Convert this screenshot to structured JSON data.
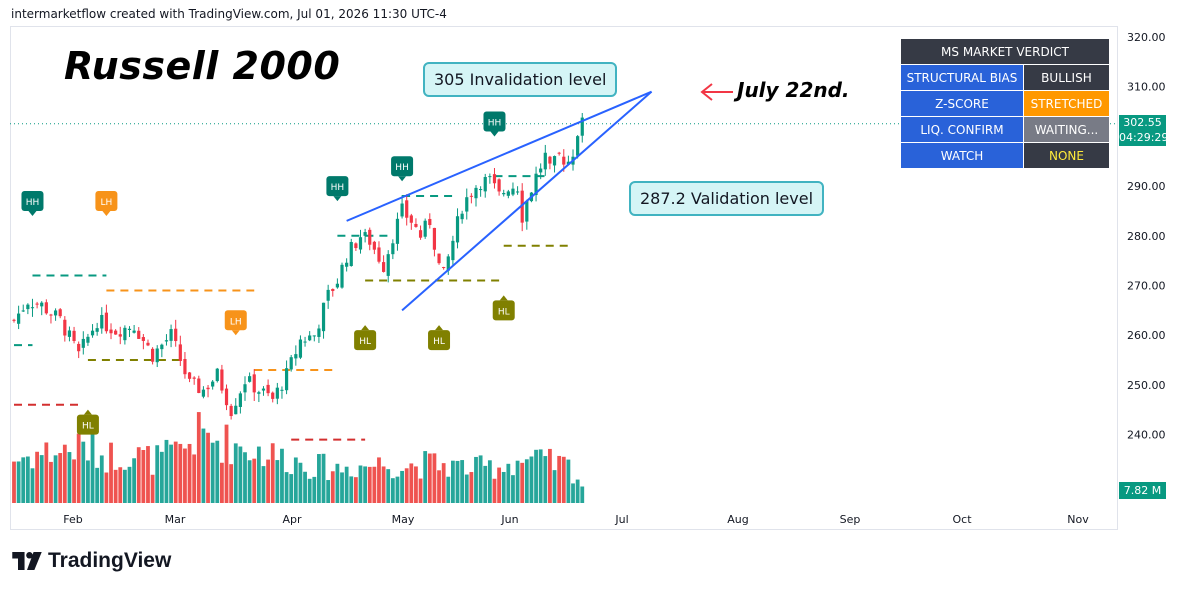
{
  "header": {
    "text": "intermarketflow created with TradingView.com, Jul 01, 2026 11:30 UTC-4"
  },
  "brand": {
    "logo_icon": "tradingview-logo-icon",
    "name": "TradingView"
  },
  "colors": {
    "up": "#089981",
    "down": "#f23645",
    "vol_up": "#26a69a",
    "vol_down": "#ef5350",
    "wedge": "#2962ff",
    "marker_hh": "#00796b",
    "marker_lh": "#f7931a",
    "marker_hl": "#808000",
    "callout_bg": "#d5f5f6",
    "callout_border": "#41b3c1"
  },
  "chart_data": {
    "type": "candlestick",
    "title": "Russell 2000",
    "y_ticks": [
      320,
      310,
      290,
      280,
      270,
      260,
      250,
      240
    ],
    "x_ticks": [
      "Feb",
      "Mar",
      "Apr",
      "May",
      "Jun",
      "Jul",
      "Aug",
      "Sep",
      "Oct",
      "Nov"
    ],
    "ylim": [
      229,
      321
    ],
    "last_price": "302.55",
    "countdown": "04:29:29",
    "volume_label": "7.82 M",
    "trading_days": 123,
    "close_waypoints": [
      [
        0,
        263
      ],
      [
        3,
        267
      ],
      [
        6,
        266
      ],
      [
        10,
        263
      ],
      [
        14,
        256
      ],
      [
        18,
        263
      ],
      [
        22,
        261
      ],
      [
        26,
        262
      ],
      [
        30,
        256
      ],
      [
        34,
        260
      ],
      [
        38,
        250
      ],
      [
        41,
        249
      ],
      [
        44,
        252
      ],
      [
        47,
        245
      ],
      [
        50,
        251
      ],
      [
        53,
        249
      ],
      [
        56,
        247
      ],
      [
        59,
        252
      ],
      [
        62,
        259
      ],
      [
        65,
        260
      ],
      [
        68,
        268
      ],
      [
        70,
        271
      ],
      [
        72,
        276
      ],
      [
        75,
        280
      ],
      [
        77,
        279
      ],
      [
        80,
        274
      ],
      [
        82,
        280
      ],
      [
        84,
        285
      ],
      [
        86,
        283
      ],
      [
        88,
        280
      ],
      [
        90,
        283
      ],
      [
        92,
        274
      ],
      [
        93,
        272
      ],
      [
        95,
        279
      ],
      [
        97,
        286
      ],
      [
        99,
        289
      ],
      [
        101,
        291
      ],
      [
        103,
        291
      ],
      [
        105,
        288
      ],
      [
        107,
        290
      ],
      [
        109,
        290
      ],
      [
        110,
        284
      ],
      [
        111,
        287
      ],
      [
        113,
        292
      ],
      [
        115,
        296
      ],
      [
        116,
        293
      ],
      [
        118,
        296
      ],
      [
        120,
        295
      ],
      [
        121,
        297
      ],
      [
        122,
        301
      ],
      [
        123,
        302.5
      ]
    ],
    "volume_profile": [
      [
        0,
        0.35
      ],
      [
        5,
        0.4
      ],
      [
        10,
        0.42
      ],
      [
        15,
        0.45
      ],
      [
        20,
        0.38
      ],
      [
        25,
        0.4
      ],
      [
        30,
        0.35
      ],
      [
        35,
        0.4
      ],
      [
        40,
        0.55
      ],
      [
        45,
        0.5
      ],
      [
        50,
        0.45
      ],
      [
        55,
        0.4
      ],
      [
        60,
        0.35
      ],
      [
        65,
        0.3
      ],
      [
        70,
        0.28
      ],
      [
        75,
        0.3
      ],
      [
        80,
        0.32
      ],
      [
        85,
        0.3
      ],
      [
        90,
        0.32
      ],
      [
        95,
        0.3
      ],
      [
        100,
        0.28
      ],
      [
        105,
        0.3
      ],
      [
        110,
        0.35
      ],
      [
        115,
        0.33
      ],
      [
        120,
        0.3
      ],
      [
        123,
        0.15
      ]
    ],
    "swing_markers": [
      {
        "label": "HH",
        "x": 2,
        "y": 287
      },
      {
        "label": "LH",
        "x": 10,
        "y": 287
      },
      {
        "label": "HL",
        "x": 8,
        "y": 242
      },
      {
        "label": "HH",
        "x": 35,
        "y": 290
      },
      {
        "label": "LH",
        "x": 24,
        "y": 263
      },
      {
        "label": "HL",
        "x": 38,
        "y": 259
      },
      {
        "label": "HH",
        "x": 42,
        "y": 294
      },
      {
        "label": "HL",
        "x": 46,
        "y": 259
      },
      {
        "label": "HH",
        "x": 52,
        "y": 303
      },
      {
        "label": "HL",
        "x": 53,
        "y": 265
      }
    ],
    "levels": [
      {
        "color": "#089981",
        "x1": 2,
        "x2": 10,
        "y": 272
      },
      {
        "color": "#089981",
        "x1": 0,
        "x2": 2,
        "y": 258
      },
      {
        "color": "#f7931a",
        "x1": 10,
        "x2": 26,
        "y": 269
      },
      {
        "color": "#808000",
        "x1": 8,
        "x2": 18,
        "y": 255
      },
      {
        "color": "#d32f2f",
        "x1": 0,
        "x2": 7,
        "y": 246
      },
      {
        "color": "#f7931a",
        "x1": 26,
        "x2": 35,
        "y": 253
      },
      {
        "color": "#d32f2f",
        "x1": 30,
        "x2": 38,
        "y": 239
      },
      {
        "color": "#089981",
        "x1": 35,
        "x2": 41,
        "y": 280
      },
      {
        "color": "#808000",
        "x1": 38,
        "x2": 53,
        "y": 271
      },
      {
        "color": "#089981",
        "x1": 42,
        "x2": 48,
        "y": 288
      },
      {
        "color": "#089981",
        "x1": 52,
        "x2": 58,
        "y": 292
      },
      {
        "color": "#808000",
        "x1": 53,
        "x2": 60,
        "y": 278
      }
    ],
    "wedge_upper": [
      [
        36,
        283
      ],
      [
        69,
        309
      ]
    ],
    "wedge_lower": [
      [
        42,
        265
      ],
      [
        69,
        309
      ]
    ],
    "annotations": [
      {
        "text": "305 Invalidation level"
      },
      {
        "text": "287.2 Validation level"
      },
      {
        "text": "July 22nd."
      }
    ]
  },
  "verdict": {
    "title": "MS MARKET VERDICT",
    "rows": [
      {
        "label": "STRUCTURAL BIAS",
        "value": "BULLISH",
        "bg": "#363a45",
        "color": "#ffffff"
      },
      {
        "label": "Z-SCORE",
        "value": "STRETCHED",
        "bg": "#ff9800",
        "color": "#ffffff"
      },
      {
        "label": "LIQ. CONFIRM",
        "value": "WAITING...",
        "bg": "#787b86",
        "color": "#ffffff"
      },
      {
        "label": "WATCH",
        "value": "NONE",
        "bg": "#363a45",
        "color": "#ffeb3b"
      }
    ]
  }
}
